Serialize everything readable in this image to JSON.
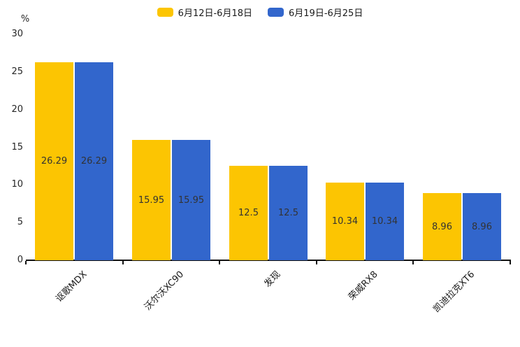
{
  "chart_data": {
    "type": "bar",
    "title": "",
    "unit_label": "%",
    "categories": [
      "讴歌MDX",
      "沃尔沃XC90",
      "发现",
      "荣威RX8",
      "凯迪拉克XT6"
    ],
    "series": [
      {
        "name": "6月12日-6月18日",
        "color": "#FCC502",
        "values": [
          26.29,
          15.95,
          12.5,
          10.34,
          8.96
        ]
      },
      {
        "name": "6月19日-6月25日",
        "color": "#3266CC",
        "values": [
          26.29,
          15.95,
          12.5,
          10.34,
          8.96
        ]
      }
    ],
    "ylim": [
      0,
      30
    ],
    "yticks": [
      0,
      5,
      10,
      15,
      20,
      25,
      30
    ],
    "legend_position": "top-center",
    "grid": false,
    "value_label_position": "inside-center",
    "colors": {
      "axis_line": "#111111",
      "tick_text": "#262626",
      "value_label_text": "#333333",
      "background": "#ffffff"
    }
  }
}
